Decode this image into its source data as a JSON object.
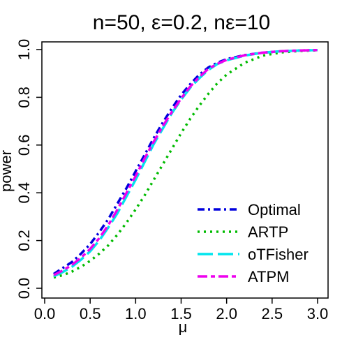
{
  "chart_data": {
    "type": "line",
    "title": "n=50, ε=0.2, nε=10",
    "xlabel": "μ",
    "ylabel": "power",
    "xlim": [
      0.0,
      3.0
    ],
    "ylim": [
      0.0,
      1.0
    ],
    "x_ticks": [
      "0.0",
      "0.5",
      "1.0",
      "1.5",
      "2.0",
      "2.5",
      "3.0"
    ],
    "y_ticks": [
      "0.0",
      "0.2",
      "0.4",
      "0.6",
      "0.8",
      "1.0"
    ],
    "grid": false,
    "legend_position": "bottom-right",
    "x": [
      0.1,
      0.2,
      0.3,
      0.4,
      0.5,
      0.6,
      0.7,
      0.8,
      0.9,
      1.0,
      1.1,
      1.2,
      1.3,
      1.4,
      1.5,
      1.6,
      1.7,
      1.8,
      1.9,
      2.0,
      2.2,
      2.4,
      2.6,
      2.8,
      3.0
    ],
    "series": [
      {
        "name": "Optimal",
        "color": "#0000DD",
        "dash": "dotdash",
        "values": [
          0.06,
          0.085,
          0.11,
          0.145,
          0.185,
          0.235,
          0.29,
          0.355,
          0.42,
          0.49,
          0.56,
          0.63,
          0.695,
          0.755,
          0.81,
          0.855,
          0.895,
          0.925,
          0.945,
          0.96,
          0.977,
          0.987,
          0.993,
          0.996,
          0.998
        ]
      },
      {
        "name": "ARTP",
        "color": "#00BB00",
        "dash": "dotted",
        "values": [
          0.045,
          0.055,
          0.07,
          0.09,
          0.115,
          0.145,
          0.18,
          0.225,
          0.275,
          0.33,
          0.39,
          0.455,
          0.52,
          0.585,
          0.65,
          0.71,
          0.765,
          0.815,
          0.86,
          0.895,
          0.945,
          0.975,
          0.988,
          0.994,
          0.997
        ]
      },
      {
        "name": "oTFisher",
        "color": "#00E5EE",
        "dash": "longdash",
        "values": [
          0.05,
          0.068,
          0.09,
          0.12,
          0.155,
          0.2,
          0.255,
          0.315,
          0.385,
          0.455,
          0.53,
          0.605,
          0.67,
          0.735,
          0.79,
          0.84,
          0.88,
          0.915,
          0.94,
          0.955,
          0.975,
          0.987,
          0.993,
          0.996,
          0.998
        ]
      },
      {
        "name": "ATPM",
        "color": "#EE00EE",
        "dash": "twodash",
        "values": [
          0.055,
          0.075,
          0.098,
          0.128,
          0.165,
          0.21,
          0.265,
          0.33,
          0.4,
          0.47,
          0.545,
          0.615,
          0.68,
          0.74,
          0.795,
          0.845,
          0.885,
          0.92,
          0.94,
          0.957,
          0.976,
          0.987,
          0.993,
          0.996,
          0.998
        ]
      }
    ]
  }
}
